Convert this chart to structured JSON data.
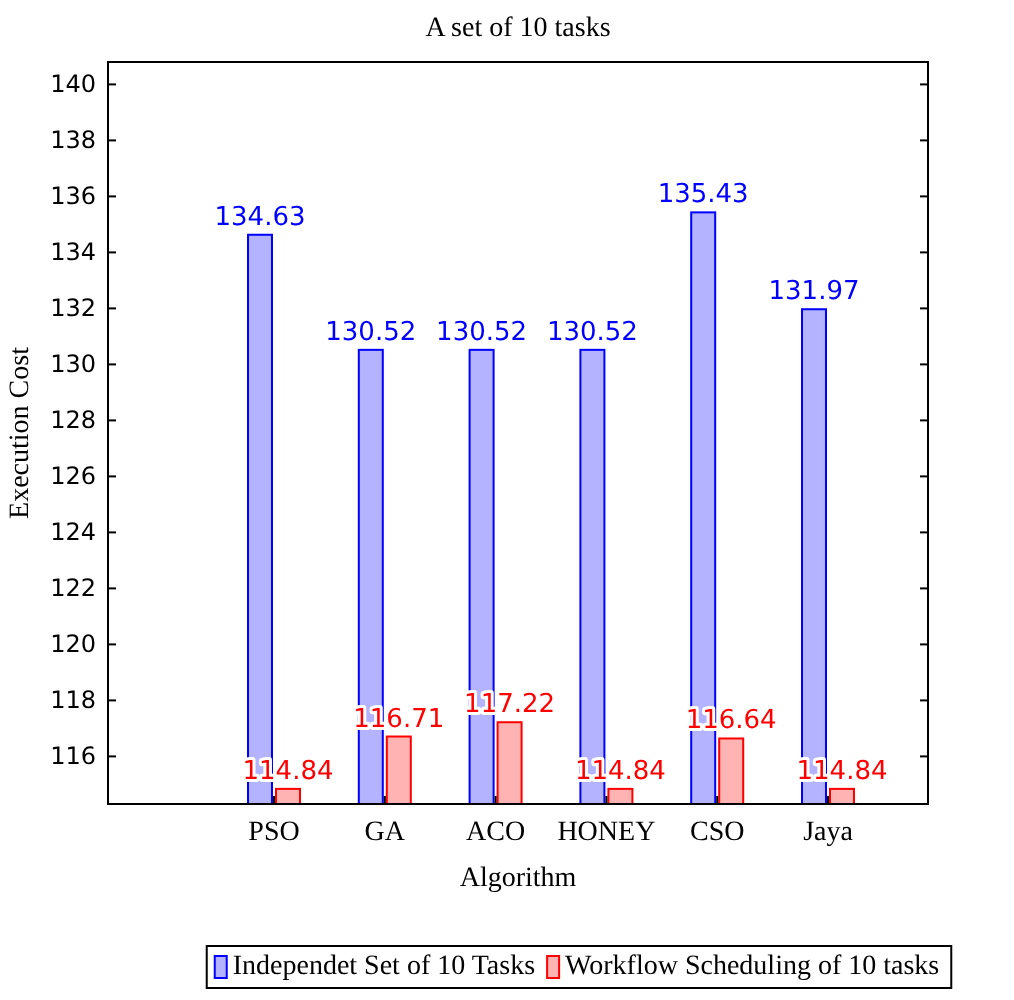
{
  "chart_data": {
    "type": "bar",
    "title": "A set of 10 tasks",
    "xlabel": "Algorithm",
    "ylabel": "Execution Cost",
    "categories": [
      "PSO",
      "GA",
      "ACO",
      "HONEY",
      "CSO",
      "Jaya"
    ],
    "series": [
      {
        "name": "Independet Set of 10 Tasks",
        "color": "#0000ff",
        "values": [
          134.63,
          130.52,
          130.52,
          130.52,
          135.43,
          131.97
        ]
      },
      {
        "name": "Workflow Scheduling of 10 tasks",
        "color": "#ff0000",
        "values": [
          114.84,
          116.71,
          117.22,
          114.84,
          116.64,
          114.84
        ]
      }
    ],
    "ylim": [
      114.3,
      140.8
    ],
    "yticks": [
      116,
      118,
      120,
      122,
      124,
      126,
      128,
      130,
      132,
      134,
      136,
      138,
      140
    ],
    "data_labels": true,
    "legend": "bottom",
    "grid": false
  }
}
